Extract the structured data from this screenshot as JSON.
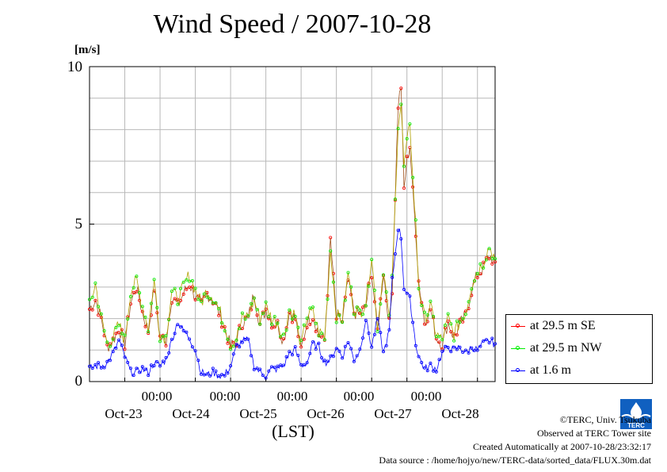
{
  "chart_data": {
    "type": "line",
    "title": "Wind Speed / 2007-10-28",
    "ylabel": "[m/s]",
    "xlabel": "(LST)",
    "ylim": [
      0,
      10
    ],
    "y_ticks": [
      "0",
      "5",
      "10"
    ],
    "x_time_ticks": [
      "00:00",
      "00:00",
      "00:00",
      "00:00",
      "00:00"
    ],
    "x_date_labels": [
      "Oct-23",
      "Oct-24",
      "Oct-25",
      "Oct-26",
      "Oct-27",
      "Oct-28"
    ],
    "grid": true,
    "legend_position": "right",
    "series": [
      {
        "name": "at 29.5 m SE",
        "color": "#ff0000",
        "line_color": "#a0521e",
        "keypoints": [
          [
            0,
            2.3
          ],
          [
            4,
            2.6
          ],
          [
            8,
            2.0
          ],
          [
            12,
            1.1
          ],
          [
            16,
            1.3
          ],
          [
            20,
            1.7
          ],
          [
            24,
            1.2
          ],
          [
            28,
            2.5
          ],
          [
            32,
            3.0
          ],
          [
            36,
            2.2
          ],
          [
            40,
            1.6
          ],
          [
            44,
            3.0
          ],
          [
            48,
            1.4
          ],
          [
            52,
            1.3
          ],
          [
            56,
            2.7
          ],
          [
            60,
            2.4
          ],
          [
            64,
            2.8
          ],
          [
            68,
            3.1
          ],
          [
            72,
            2.7
          ],
          [
            76,
            2.4
          ],
          [
            80,
            2.8
          ],
          [
            84,
            2.6
          ],
          [
            88,
            2.2
          ],
          [
            92,
            1.7
          ],
          [
            96,
            1.1
          ],
          [
            100,
            1.3
          ],
          [
            104,
            1.9
          ],
          [
            108,
            2.0
          ],
          [
            112,
            2.8
          ],
          [
            116,
            1.8
          ],
          [
            120,
            2.3
          ],
          [
            124,
            1.9
          ],
          [
            128,
            1.8
          ],
          [
            132,
            1.3
          ],
          [
            136,
            2.2
          ],
          [
            140,
            2.0
          ],
          [
            144,
            1.0
          ],
          [
            148,
            1.9
          ],
          [
            152,
            2.1
          ],
          [
            156,
            1.5
          ],
          [
            160,
            1.3
          ],
          [
            164,
            4.5
          ],
          [
            168,
            2.0
          ],
          [
            172,
            1.9
          ],
          [
            176,
            3.2
          ],
          [
            180,
            2.2
          ],
          [
            184,
            2.1
          ],
          [
            188,
            2.4
          ],
          [
            192,
            3.5
          ],
          [
            196,
            1.6
          ],
          [
            200,
            3.5
          ],
          [
            204,
            1.8
          ],
          [
            206,
            3.0
          ],
          [
            210,
            8.8
          ],
          [
            212,
            9.4
          ],
          [
            214,
            6.1
          ],
          [
            216,
            7.0
          ],
          [
            218,
            7.5
          ],
          [
            220,
            6.0
          ],
          [
            222,
            4.8
          ],
          [
            224,
            3.2
          ],
          [
            228,
            1.9
          ],
          [
            232,
            2.3
          ],
          [
            236,
            1.4
          ],
          [
            240,
            1.2
          ],
          [
            244,
            1.9
          ],
          [
            248,
            1.4
          ],
          [
            252,
            1.8
          ],
          [
            256,
            2.1
          ],
          [
            260,
            2.9
          ],
          [
            264,
            3.4
          ],
          [
            268,
            3.6
          ],
          [
            272,
            4.0
          ],
          [
            276,
            3.8
          ]
        ]
      },
      {
        "name": "at 29.5 m NW",
        "color": "#00ee00",
        "line_color": "#b0a000",
        "keypoints": [
          [
            0,
            2.4
          ],
          [
            4,
            3.1
          ],
          [
            8,
            2.0
          ],
          [
            12,
            1.2
          ],
          [
            16,
            1.4
          ],
          [
            20,
            1.8
          ],
          [
            24,
            1.3
          ],
          [
            28,
            2.9
          ],
          [
            32,
            3.2
          ],
          [
            36,
            2.4
          ],
          [
            40,
            1.7
          ],
          [
            44,
            3.2
          ],
          [
            48,
            1.5
          ],
          [
            52,
            1.4
          ],
          [
            56,
            2.9
          ],
          [
            60,
            2.6
          ],
          [
            64,
            3.0
          ],
          [
            68,
            3.4
          ],
          [
            72,
            2.9
          ],
          [
            76,
            2.5
          ],
          [
            80,
            2.9
          ],
          [
            84,
            2.7
          ],
          [
            88,
            2.3
          ],
          [
            92,
            1.8
          ],
          [
            96,
            1.2
          ],
          [
            100,
            1.4
          ],
          [
            104,
            2.0
          ],
          [
            108,
            2.1
          ],
          [
            112,
            2.6
          ],
          [
            116,
            2.0
          ],
          [
            120,
            2.4
          ],
          [
            124,
            2.0
          ],
          [
            128,
            1.9
          ],
          [
            132,
            1.4
          ],
          [
            136,
            2.3
          ],
          [
            140,
            2.1
          ],
          [
            144,
            1.1
          ],
          [
            148,
            2.1
          ],
          [
            152,
            2.2
          ],
          [
            156,
            1.6
          ],
          [
            160,
            1.4
          ],
          [
            164,
            4.2
          ],
          [
            168,
            2.1
          ],
          [
            172,
            2.0
          ],
          [
            176,
            3.4
          ],
          [
            180,
            2.3
          ],
          [
            184,
            2.2
          ],
          [
            188,
            2.5
          ],
          [
            192,
            4.0
          ],
          [
            196,
            1.7
          ],
          [
            200,
            3.6
          ],
          [
            204,
            1.9
          ],
          [
            206,
            3.2
          ],
          [
            210,
            8.2
          ],
          [
            212,
            8.8
          ],
          [
            214,
            6.8
          ],
          [
            216,
            7.5
          ],
          [
            218,
            8.3
          ],
          [
            220,
            6.4
          ],
          [
            222,
            5.0
          ],
          [
            224,
            3.0
          ],
          [
            228,
            2.0
          ],
          [
            232,
            2.4
          ],
          [
            236,
            1.5
          ],
          [
            240,
            1.3
          ],
          [
            244,
            2.0
          ],
          [
            248,
            1.5
          ],
          [
            252,
            1.9
          ],
          [
            256,
            2.2
          ],
          [
            260,
            3.1
          ],
          [
            264,
            3.5
          ],
          [
            268,
            3.8
          ],
          [
            272,
            4.3
          ],
          [
            276,
            3.9
          ]
        ]
      },
      {
        "name": "at 1.6 m",
        "color": "#0000ff",
        "line_color": "#0000ff",
        "keypoints": [
          [
            0,
            0.4
          ],
          [
            4,
            0.5
          ],
          [
            8,
            0.5
          ],
          [
            12,
            0.6
          ],
          [
            16,
            0.9
          ],
          [
            20,
            1.3
          ],
          [
            24,
            0.8
          ],
          [
            28,
            0.3
          ],
          [
            32,
            0.3
          ],
          [
            36,
            0.4
          ],
          [
            40,
            0.3
          ],
          [
            44,
            0.6
          ],
          [
            48,
            0.5
          ],
          [
            52,
            0.7
          ],
          [
            56,
            1.3
          ],
          [
            60,
            1.9
          ],
          [
            64,
            1.6
          ],
          [
            68,
            1.4
          ],
          [
            72,
            1.0
          ],
          [
            76,
            0.3
          ],
          [
            80,
            0.2
          ],
          [
            84,
            0.3
          ],
          [
            88,
            0.2
          ],
          [
            92,
            0.2
          ],
          [
            96,
            0.5
          ],
          [
            100,
            1.1
          ],
          [
            104,
            1.3
          ],
          [
            108,
            1.3
          ],
          [
            112,
            0.5
          ],
          [
            116,
            0.3
          ],
          [
            120,
            0.2
          ],
          [
            124,
            0.4
          ],
          [
            128,
            0.4
          ],
          [
            132,
            0.5
          ],
          [
            136,
            0.9
          ],
          [
            140,
            1.0
          ],
          [
            144,
            0.5
          ],
          [
            148,
            0.6
          ],
          [
            152,
            1.2
          ],
          [
            156,
            1.1
          ],
          [
            160,
            0.6
          ],
          [
            164,
            0.7
          ],
          [
            168,
            1.1
          ],
          [
            172,
            0.8
          ],
          [
            176,
            1.3
          ],
          [
            180,
            0.7
          ],
          [
            184,
            1.0
          ],
          [
            188,
            2.0
          ],
          [
            192,
            1.1
          ],
          [
            196,
            2.0
          ],
          [
            200,
            0.9
          ],
          [
            204,
            1.6
          ],
          [
            206,
            3.2
          ],
          [
            210,
            4.9
          ],
          [
            212,
            4.6
          ],
          [
            214,
            3.0
          ],
          [
            216,
            2.8
          ],
          [
            218,
            2.6
          ],
          [
            220,
            1.9
          ],
          [
            222,
            1.2
          ],
          [
            224,
            0.8
          ],
          [
            228,
            0.4
          ],
          [
            232,
            0.5
          ],
          [
            236,
            0.4
          ],
          [
            240,
            0.9
          ],
          [
            244,
            1.1
          ],
          [
            248,
            1.0
          ],
          [
            252,
            1.1
          ],
          [
            256,
            0.9
          ],
          [
            260,
            1.1
          ],
          [
            264,
            1.0
          ],
          [
            268,
            1.2
          ],
          [
            272,
            1.3
          ],
          [
            276,
            1.2
          ]
        ]
      }
    ]
  },
  "legend": {
    "items": [
      "at 29.5 m SE",
      "at 29.5 m NW",
      "at 1.6 m"
    ]
  },
  "footer": {
    "copyright": "©TERC, Univ. Tsukuba",
    "observed": "Observed at TERC Tower site",
    "created": "Created Automatically at 2007-10-28/23:32:17",
    "source": "Data source : /home/hojyo/new/TERC-data/sorted_data/FLUX.30m.dat"
  },
  "logo": {
    "text": "TERC",
    "icon": "terc-logo-icon"
  }
}
